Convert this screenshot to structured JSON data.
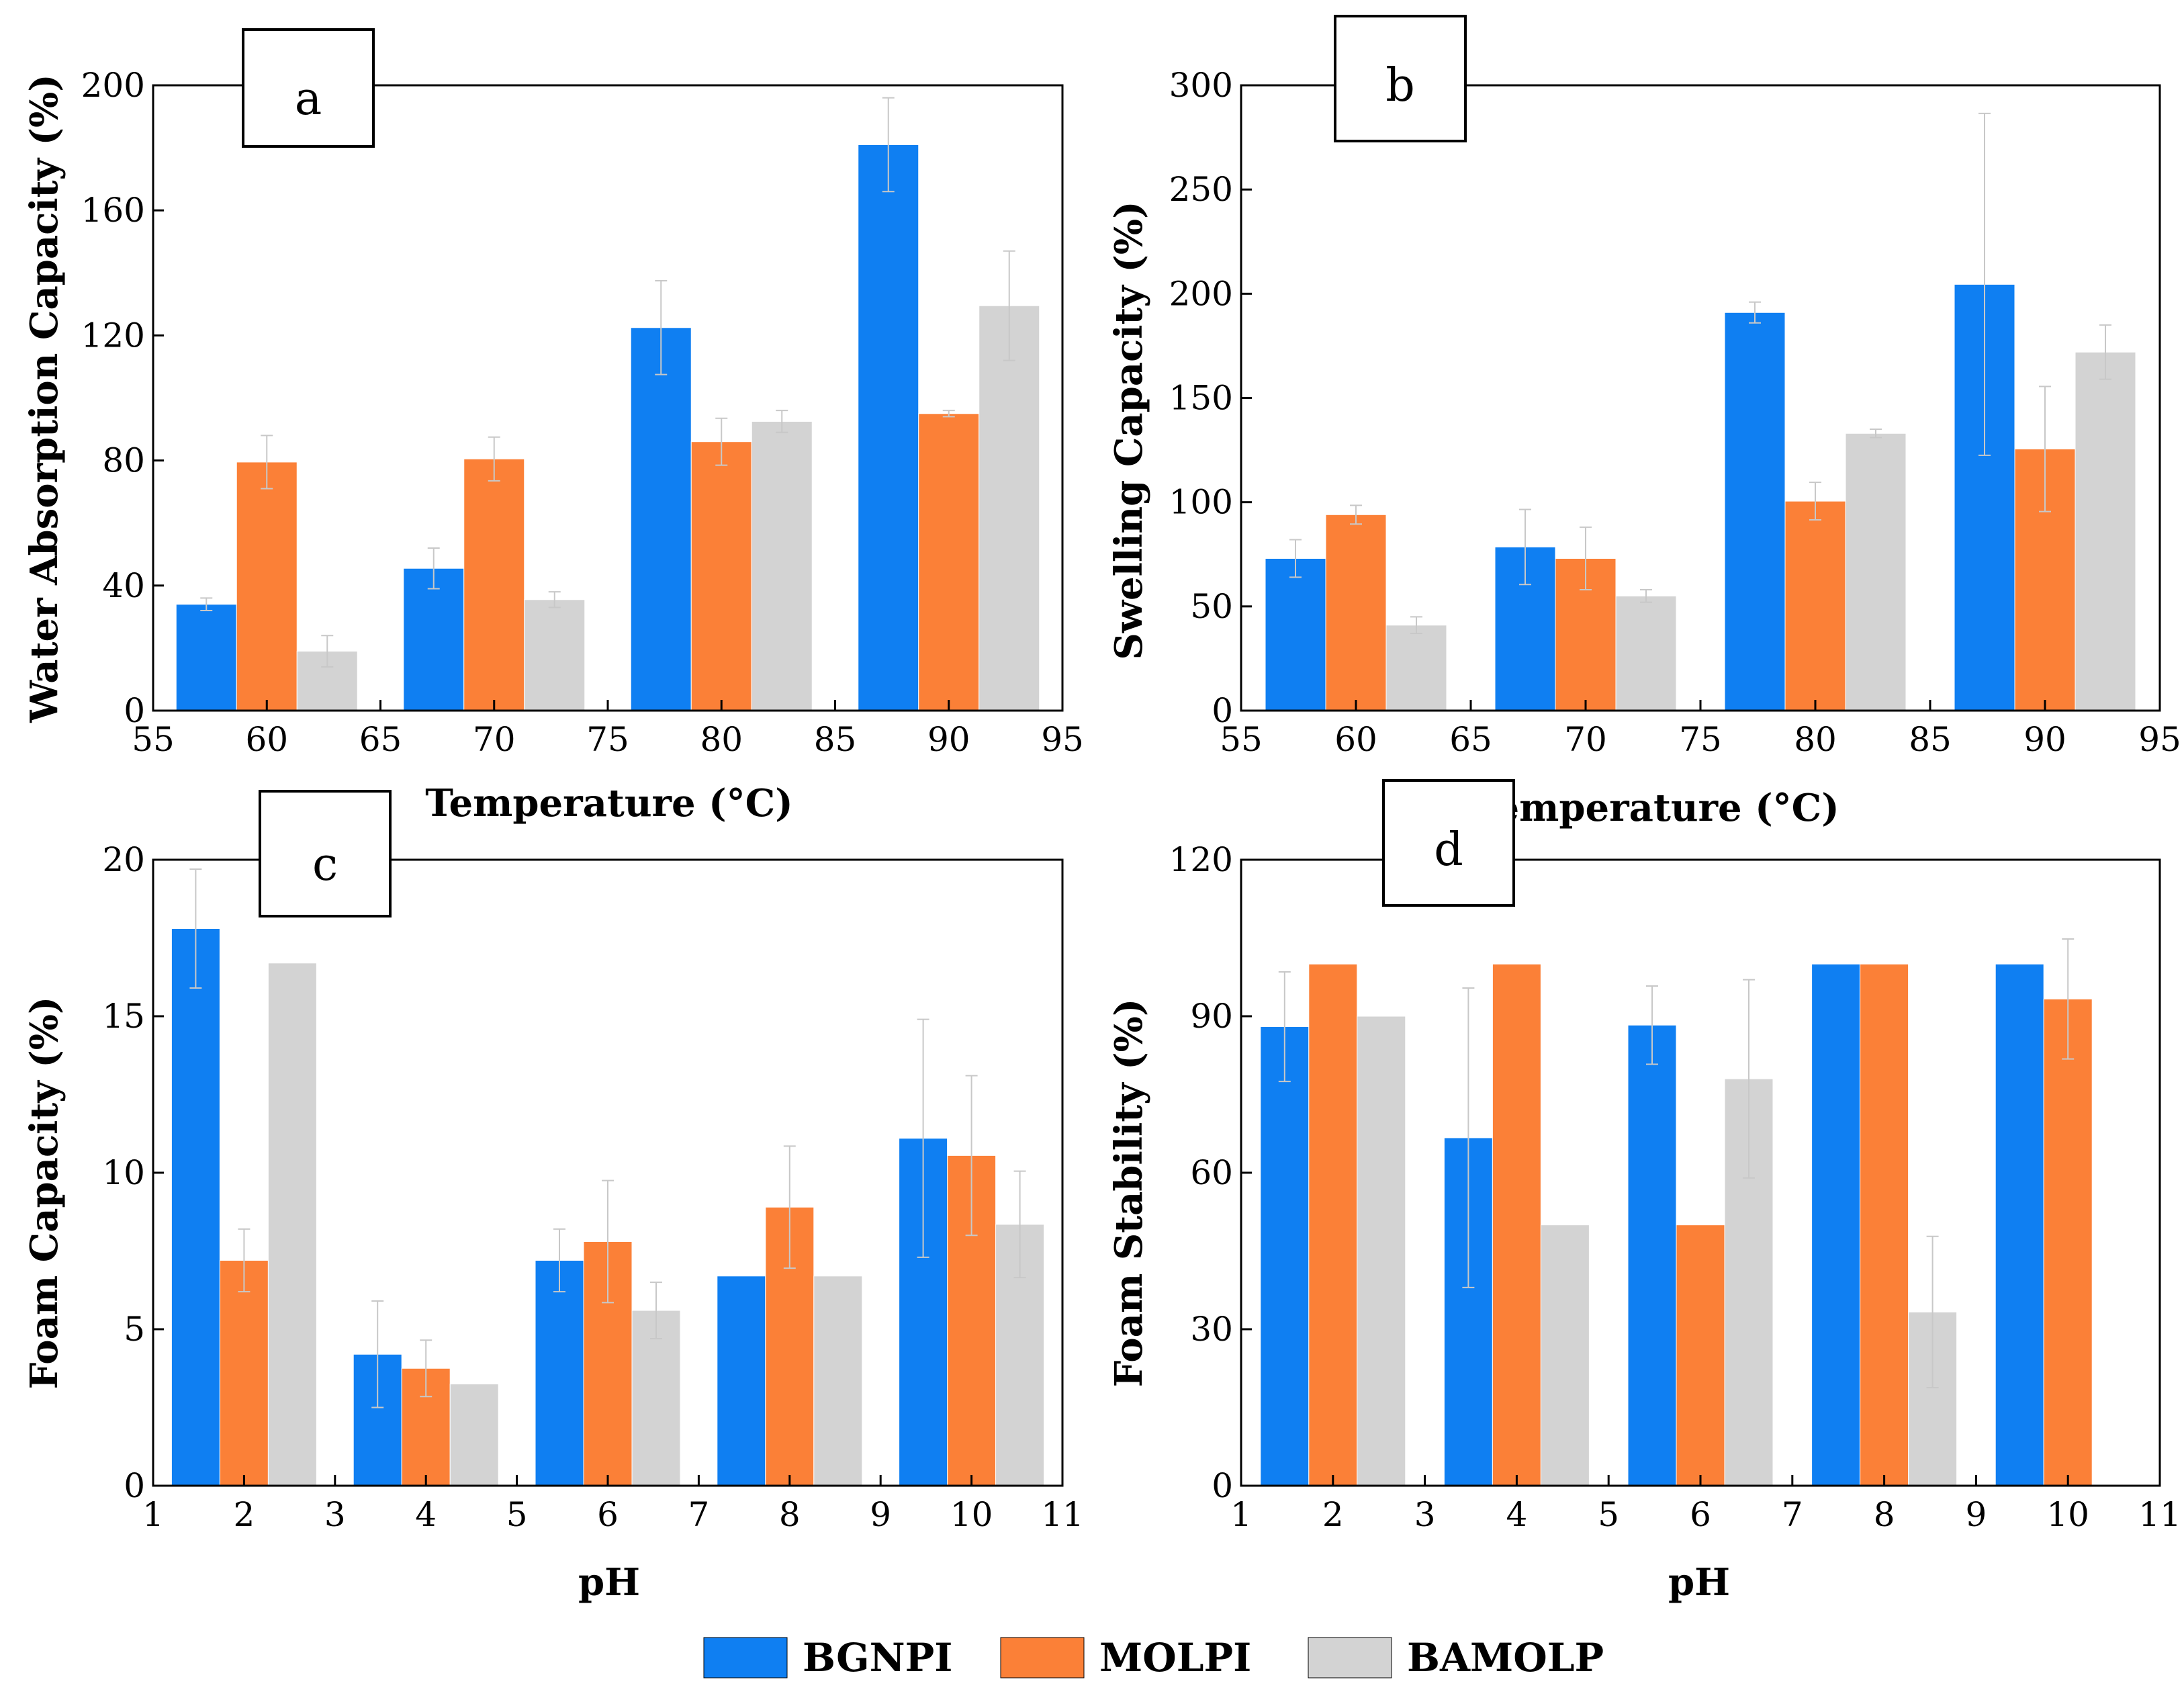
{
  "figure": {
    "colors": {
      "BGNPI": "#0f7ff2",
      "MOLPI": "#fb8037",
      "BAMOLP": "#d3d3d3"
    },
    "legend": [
      "BGNPI",
      "MOLPI",
      "BAMOLP"
    ]
  },
  "chart_data": [
    {
      "id": "a",
      "type": "bar",
      "panel_label": "a",
      "title": "",
      "xlabel": "Temperature (°C)",
      "ylabel": "Water Absorption Capacity (%)",
      "categories": [
        60,
        70,
        80,
        90
      ],
      "xlim": [
        55,
        95
      ],
      "xticks": [
        55,
        60,
        65,
        70,
        75,
        80,
        85,
        90,
        95
      ],
      "ylim": [
        0,
        200
      ],
      "yticks": [
        0,
        40,
        80,
        120,
        160,
        200
      ],
      "series": [
        {
          "name": "BGNPI",
          "values": [
            34,
            45.5,
            122.5,
            181
          ],
          "errors": [
            2,
            6.5,
            15,
            15
          ]
        },
        {
          "name": "MOLPI",
          "values": [
            79.5,
            80.5,
            86,
            95
          ],
          "errors": [
            8.5,
            7,
            7.5,
            1
          ]
        },
        {
          "name": "BAMOLP",
          "values": [
            19,
            35.5,
            92.5,
            129.5
          ],
          "errors": [
            5,
            2.5,
            3.5,
            17.5
          ]
        }
      ]
    },
    {
      "id": "b",
      "type": "bar",
      "panel_label": "b",
      "title": "",
      "xlabel": "Temperature (°C)",
      "ylabel": "Swelling Capacity (%)",
      "categories": [
        60,
        70,
        80,
        90
      ],
      "xlim": [
        55,
        95
      ],
      "xticks": [
        55,
        60,
        65,
        70,
        75,
        80,
        85,
        90,
        95
      ],
      "ylim": [
        0,
        300
      ],
      "yticks": [
        0,
        50,
        100,
        150,
        200,
        250,
        300
      ],
      "series": [
        {
          "name": "BGNPI",
          "values": [
            73,
            78.5,
            191,
            204.5
          ],
          "errors": [
            9,
            18,
            5,
            82
          ]
        },
        {
          "name": "MOLPI",
          "values": [
            94,
            73,
            100.5,
            125.5
          ],
          "errors": [
            4.5,
            15,
            9,
            30
          ]
        },
        {
          "name": "BAMOLP",
          "values": [
            41,
            55,
            133,
            172
          ],
          "errors": [
            4,
            3,
            2,
            13
          ]
        }
      ]
    },
    {
      "id": "c",
      "type": "bar",
      "panel_label": "c",
      "title": "",
      "xlabel": "pH",
      "ylabel": "Foam Capacity (%)",
      "categories": [
        2,
        4,
        6,
        8,
        10
      ],
      "xlim": [
        1,
        11
      ],
      "xticks": [
        1,
        2,
        3,
        4,
        5,
        6,
        7,
        8,
        9,
        10,
        11
      ],
      "ylim": [
        0,
        20
      ],
      "yticks": [
        0,
        5,
        10,
        15,
        20
      ],
      "series": [
        {
          "name": "BGNPI",
          "values": [
            17.8,
            4.2,
            7.2,
            6.7,
            11.1
          ],
          "errors": [
            1.9,
            1.7,
            1.0,
            0,
            3.8
          ]
        },
        {
          "name": "MOLPI",
          "values": [
            7.2,
            3.75,
            7.8,
            8.9,
            10.55
          ],
          "errors": [
            1.0,
            0.9,
            1.95,
            1.95,
            2.55
          ]
        },
        {
          "name": "BAMOLP",
          "values": [
            16.7,
            3.25,
            5.6,
            6.7,
            8.35
          ],
          "errors": [
            0,
            0,
            0.9,
            0,
            1.7
          ]
        }
      ]
    },
    {
      "id": "d",
      "type": "bar",
      "panel_label": "d",
      "title": "",
      "xlabel": "pH",
      "ylabel": "Foam Stability (%)",
      "categories": [
        2,
        4,
        6,
        8,
        10
      ],
      "xlim": [
        1,
        11
      ],
      "xticks": [
        1,
        2,
        3,
        4,
        5,
        6,
        7,
        8,
        9,
        10,
        11
      ],
      "ylim": [
        0,
        120
      ],
      "yticks": [
        0,
        30,
        60,
        90,
        120
      ],
      "series": [
        {
          "name": "BGNPI",
          "values": [
            88,
            66.7,
            88.3,
            100,
            100
          ],
          "errors": [
            10.5,
            28.7,
            7.5,
            0,
            0
          ]
        },
        {
          "name": "MOLPI",
          "values": [
            100,
            100,
            50,
            100,
            93.3
          ],
          "errors": [
            0,
            0,
            0,
            0,
            11.5
          ]
        },
        {
          "name": "BAMOLP",
          "values": [
            90,
            50,
            78,
            33.3,
            0
          ],
          "errors": [
            0,
            0,
            19,
            14.5,
            0
          ]
        }
      ]
    }
  ]
}
